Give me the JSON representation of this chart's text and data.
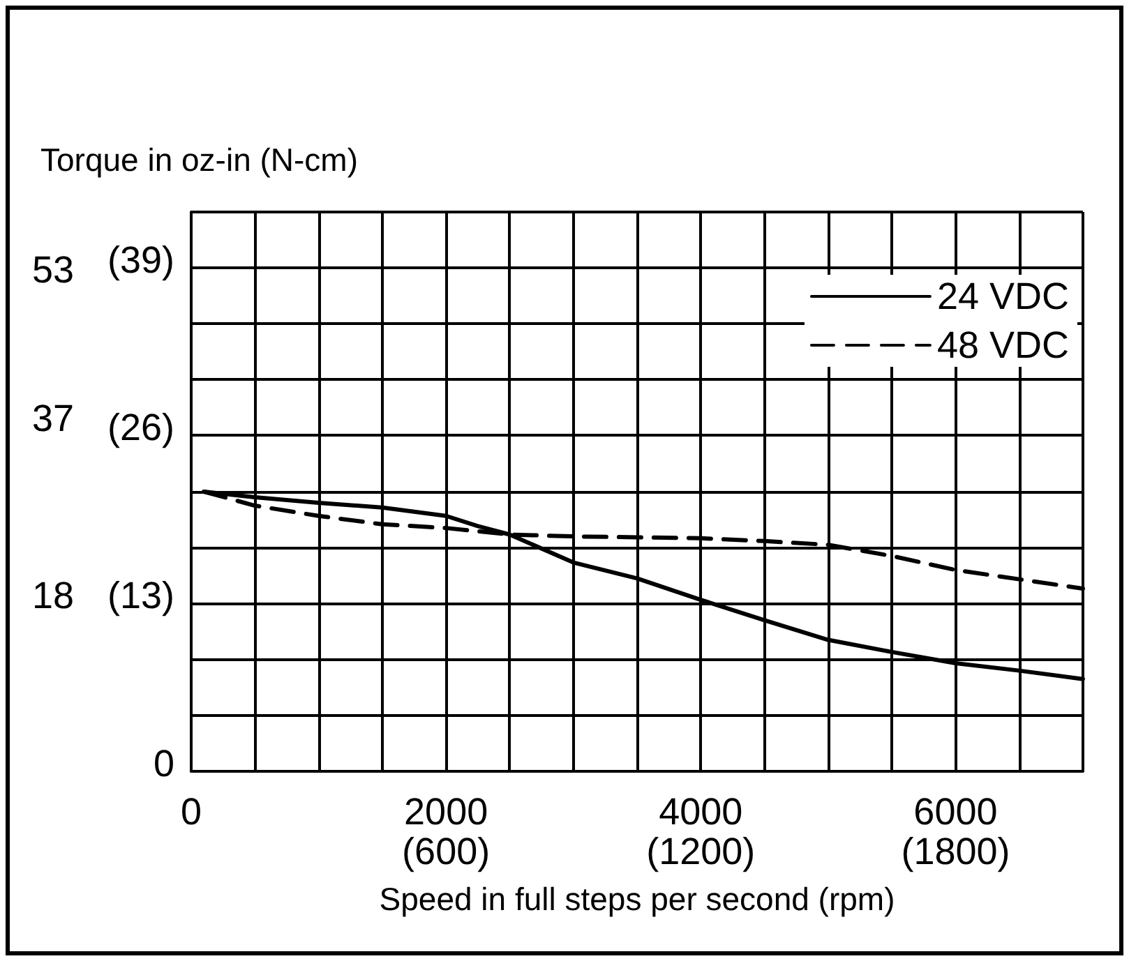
{
  "chart_data": {
    "type": "line",
    "ylabel": "Torque in oz-in (N-cm)",
    "xlabel": "Speed in full steps per second (rpm)",
    "xlim": [
      0,
      7000
    ],
    "xticks": [
      0,
      {
        "value": 500,
        "label": null
      },
      {
        "value": 1000,
        "label": null
      },
      {
        "value": 1500,
        "label": null
      },
      2000,
      {
        "value": 2500,
        "label": null
      },
      {
        "value": 3000,
        "label": null
      },
      {
        "value": 3500,
        "label": null
      },
      4000,
      {
        "value": 4500,
        "label": null
      },
      {
        "value": 5000,
        "label": null
      },
      {
        "value": 5500,
        "label": null
      },
      6000,
      {
        "value": 6500,
        "label": null
      },
      {
        "value": 7000,
        "label": null
      }
    ],
    "x2lim": [
      0,
      2100
    ],
    "x2ticks": [
      {
        "value": 600,
        "label": "(600)"
      },
      {
        "value": 1200,
        "label": "(1200)"
      },
      {
        "value": 1800,
        "label": "(1800)"
      }
    ],
    "ylim": [
      0,
      43.3
    ],
    "yticks": [
      0,
      {
        "value": 4.33,
        "label": null
      },
      {
        "value": 8.67,
        "label": null
      },
      {
        "value": 13,
        "label": "(13)"
      },
      {
        "value": 17.33,
        "label": null
      },
      {
        "value": 21.67,
        "label": null
      },
      {
        "value": 26,
        "label": "(26)"
      },
      {
        "value": 30.33,
        "label": null
      },
      {
        "value": 34.67,
        "label": null
      },
      {
        "value": 39,
        "label": "(39)"
      },
      {
        "value": 43.3,
        "label": null
      }
    ],
    "y2lim": [
      0,
      60
    ],
    "y2ticks": [
      18,
      37,
      53
    ],
    "grid": true,
    "legend": "top right",
    "marker": "none",
    "series": [
      {
        "name": "24 VDC",
        "color": "#000000",
        "line_style": "solid",
        "axis": "y2",
        "x": [
          100,
          500,
          1000,
          1500,
          2000,
          2250,
          2500,
          3000,
          3500,
          4000,
          4500,
          5000,
          5500,
          6000,
          6500,
          7000
        ],
        "values": [
          30.0,
          29.4,
          28.8,
          28.3,
          27.4,
          26.3,
          25.4,
          22.4,
          20.7,
          18.4,
          16.2,
          14.1,
          12.8,
          11.6,
          10.8,
          9.9
        ]
      },
      {
        "name": "48 VDC",
        "color": "#000000",
        "line_style": "dashed",
        "axis": "y2",
        "x": [
          100,
          500,
          1000,
          1500,
          2000,
          2500,
          3000,
          3500,
          4000,
          4500,
          5000,
          5500,
          6000,
          6500,
          7000
        ],
        "values": [
          30.0,
          28.5,
          27.4,
          26.5,
          26.1,
          25.4,
          25.2,
          25.1,
          25.0,
          24.7,
          24.3,
          23.1,
          21.6,
          20.6,
          19.6
        ]
      }
    ]
  }
}
